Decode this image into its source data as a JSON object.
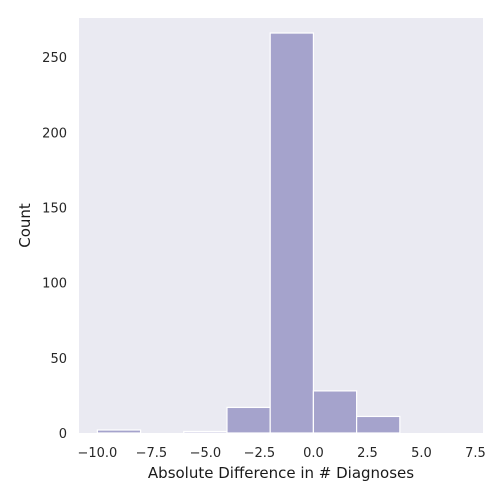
{
  "chart_data": {
    "type": "bar",
    "xlabel": "Absolute Difference in # Diagnoses",
    "ylabel": "Count",
    "xlim": [
      -10.85,
      7.85
    ],
    "ylim": [
      0,
      276
    ],
    "grid": false,
    "bar_color": "#a5a3cc",
    "background": "#eaeaf2",
    "bins": [
      {
        "x0": -10.0,
        "x1": -8.0,
        "count": 2
      },
      {
        "x0": -8.0,
        "x1": -6.0,
        "count": 0
      },
      {
        "x0": -6.0,
        "x1": -4.0,
        "count": 1
      },
      {
        "x0": -4.0,
        "x1": -2.0,
        "count": 17
      },
      {
        "x0": -2.0,
        "x1": 0.0,
        "count": 266
      },
      {
        "x0": 0.0,
        "x1": 2.0,
        "count": 28
      },
      {
        "x0": 2.0,
        "x1": 4.0,
        "count": 11
      },
      {
        "x0": 4.0,
        "x1": 6.0,
        "count": 0
      },
      {
        "x0": 6.0,
        "x1": 8.0,
        "count": 0
      }
    ],
    "x_ticks": [
      {
        "value": -10.0,
        "label": "−10.0"
      },
      {
        "value": -7.5,
        "label": "−7.5"
      },
      {
        "value": -5.0,
        "label": "−5.0"
      },
      {
        "value": -2.5,
        "label": "−2.5"
      },
      {
        "value": 0.0,
        "label": "0.0"
      },
      {
        "value": 2.5,
        "label": "2.5"
      },
      {
        "value": 5.0,
        "label": "5.0"
      },
      {
        "value": 7.5,
        "label": "7.5"
      }
    ],
    "y_ticks": [
      {
        "value": 0,
        "label": "0"
      },
      {
        "value": 50,
        "label": "50"
      },
      {
        "value": 100,
        "label": "100"
      },
      {
        "value": 150,
        "label": "150"
      },
      {
        "value": 200,
        "label": "200"
      },
      {
        "value": 250,
        "label": "250"
      }
    ]
  }
}
